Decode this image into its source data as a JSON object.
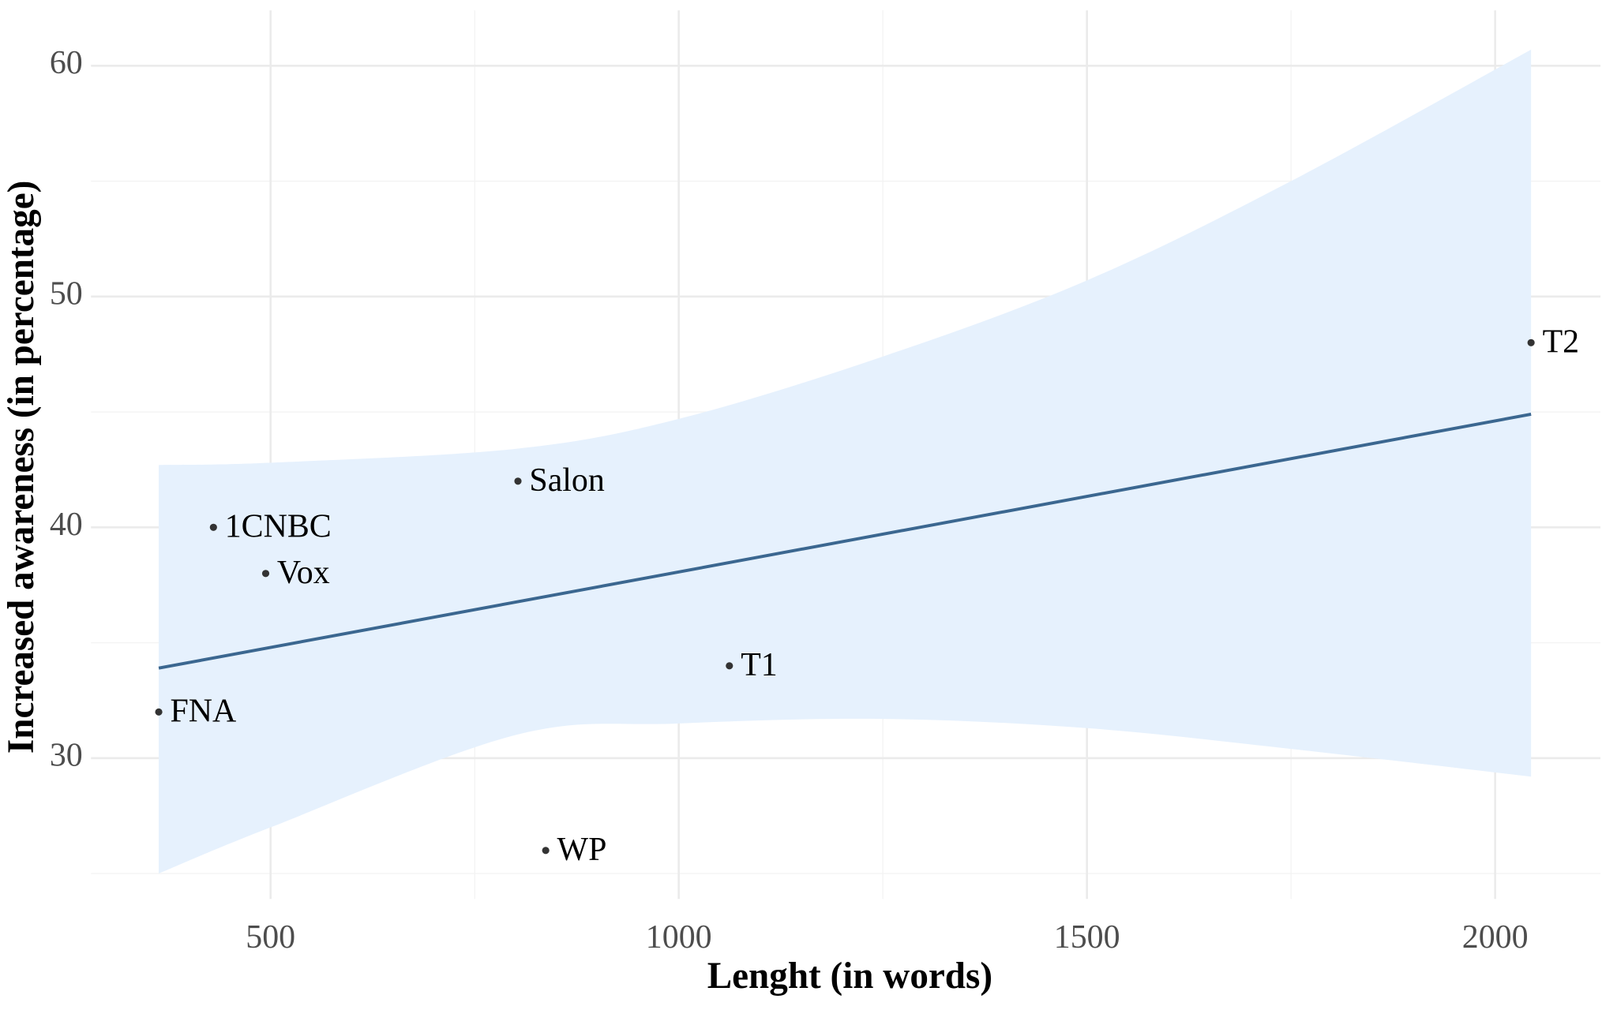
{
  "chart_data": {
    "type": "scatter",
    "x_label": "Lenght (in words)",
    "y_label": "Increased awareness (in percentage)",
    "labels": [
      "FNA",
      "1CNBC",
      "Vox",
      "Salon",
      "WP",
      "T1",
      "T2"
    ],
    "x": [
      363,
      430,
      494,
      803,
      837,
      1062,
      2044
    ],
    "values": [
      32,
      40,
      38,
      42,
      26,
      34,
      48
    ],
    "point_color": "#333333",
    "fit": {
      "x": [
        363,
        2044
      ],
      "values": [
        33.9,
        44.9
      ],
      "color": "#3b6790"
    },
    "band": {
      "x": [
        363,
        500,
        800,
        1000,
        1250,
        1500,
        1750,
        2044
      ],
      "upper": [
        42.7,
        42.8,
        43.4,
        44.7,
        47.4,
        50.7,
        55.0,
        60.7
      ],
      "lower": [
        25.0,
        27.0,
        31.0,
        31.5,
        31.7,
        31.3,
        30.4,
        29.2
      ],
      "color": "#e6f1fd"
    },
    "xlim": [
      280,
      2129
    ],
    "ylim": [
      23.9,
      62.4
    ],
    "xticks": [
      500,
      1000,
      1500,
      2000
    ],
    "yticks": [
      30,
      40,
      50,
      60
    ],
    "xminor": [
      750,
      1250,
      1750
    ],
    "yminor": [
      25,
      35,
      45,
      55
    ],
    "grid": true
  }
}
